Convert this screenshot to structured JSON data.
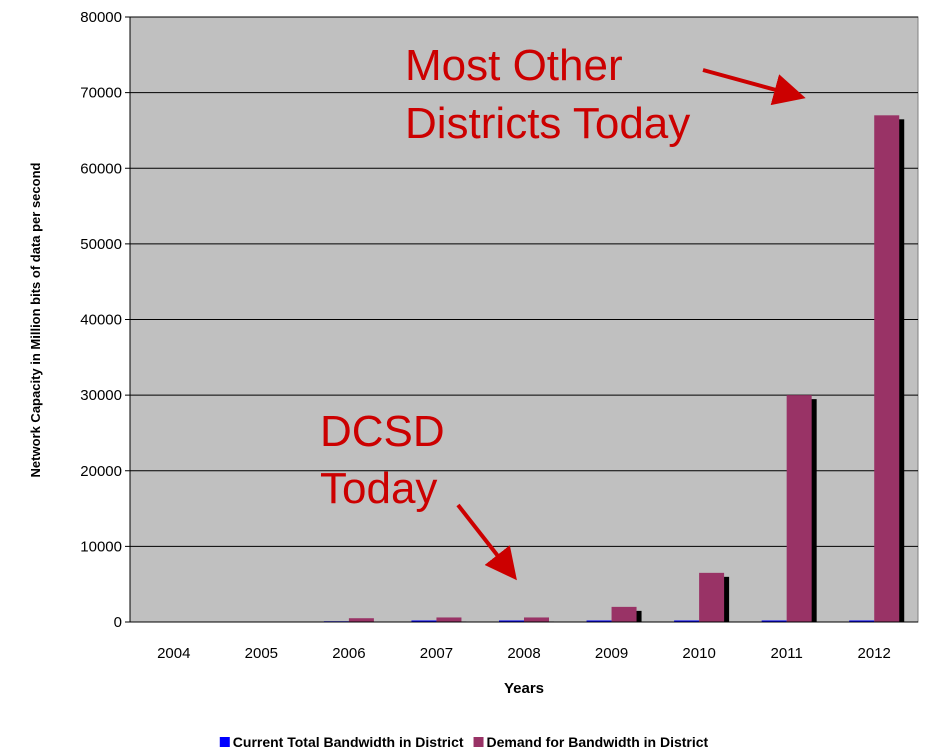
{
  "chart_data": {
    "type": "bar",
    "y_label": "Network Capacity in Million bits of data per second",
    "x_label": "Years",
    "categories": [
      "2004",
      "2005",
      "2006",
      "2007",
      "2008",
      "2009",
      "2010",
      "2011",
      "2012"
    ],
    "series": [
      {
        "name": "Current Total Bandwidth in District",
        "color": "#0000ff",
        "values": [
          0,
          0,
          100,
          200,
          200,
          200,
          200,
          200,
          200
        ]
      },
      {
        "name": "Demand for Bandwidth in District",
        "color": "#993366",
        "values": [
          0,
          0,
          500,
          600,
          600,
          2000,
          6500,
          30000,
          67000
        ]
      }
    ],
    "ylim": [
      0,
      80000
    ],
    "yticks": [
      0,
      10000,
      20000,
      30000,
      40000,
      50000,
      60000,
      70000,
      80000
    ],
    "grid": true,
    "legend": "bottom",
    "annotations": [
      [
        "Most Other",
        "Districts Today"
      ],
      [
        "DCSD",
        "Today"
      ]
    ],
    "annotation_color": "#cc0000"
  }
}
